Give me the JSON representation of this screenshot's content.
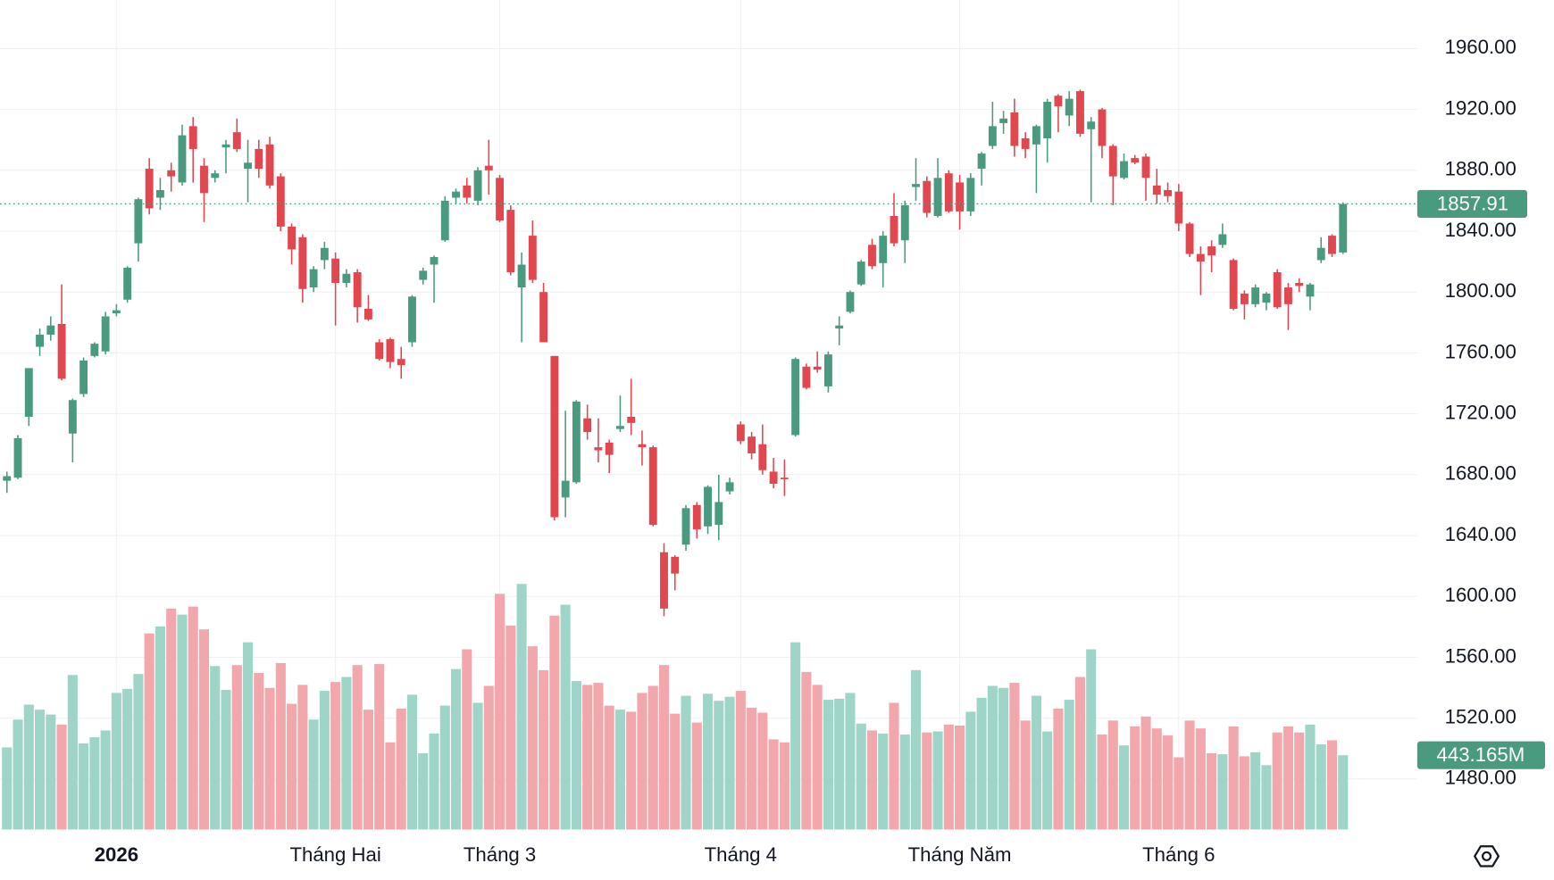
{
  "chart_data": {
    "type": "candlestick",
    "up_color": "#4a9a7f",
    "down_color": "#e0474f",
    "volume_up_color": "#9fd4c8",
    "volume_down_color": "#f2a7ad",
    "grid": true,
    "ylim": [
      1446.8,
      1991.9
    ],
    "yticks": [
      {
        "value": 1480,
        "label": "1480.00"
      },
      {
        "value": 1520,
        "label": "1520.00"
      },
      {
        "value": 1560,
        "label": "1560.00"
      },
      {
        "value": 1600,
        "label": "1600.00"
      },
      {
        "value": 1640,
        "label": "1640.00"
      },
      {
        "value": 1680,
        "label": "1680.00"
      },
      {
        "value": 1720,
        "label": "1720.00"
      },
      {
        "value": 1760,
        "label": "1760.00"
      },
      {
        "value": 1800,
        "label": "1800.00"
      },
      {
        "value": 1840,
        "label": "1840.00"
      },
      {
        "value": 1880,
        "label": "1880.00"
      },
      {
        "value": 1920,
        "label": "1920.00"
      },
      {
        "value": 1960,
        "label": "1960.00"
      }
    ],
    "xticks": [
      {
        "value": 10,
        "label": "2026"
      },
      {
        "value": 30,
        "label": "Tháng Hai"
      },
      {
        "value": 45,
        "label": "Tháng 3"
      },
      {
        "value": 67,
        "label": "Tháng 4"
      },
      {
        "value": 87,
        "label": "Tháng Năm"
      },
      {
        "value": 107,
        "label": "Tháng 6"
      }
    ],
    "volume_ylim": [
      0,
      1500
    ],
    "last_volume_label": "443.165M",
    "open": [
      1676,
      1678,
      1718,
      1764,
      1772,
      1779,
      1707,
      1733,
      1758,
      1761,
      1786,
      1795,
      1832,
      1881,
      1862,
      1880,
      1872,
      1909,
      1883,
      1875,
      1895,
      1905,
      1881,
      1894,
      1897,
      1876,
      1843,
      1836,
      1803,
      1821,
      1822,
      1806,
      1813,
      1789,
      1767,
      1769,
      1756,
      1767,
      1808,
      1818,
      1834,
      1862,
      1870,
      1860,
      1883,
      1875,
      1854,
      1803,
      1837,
      1800,
      1758,
      1665,
      1675,
      1717,
      1698,
      1701,
      1710,
      1718,
      1700,
      1698,
      1629,
      1626,
      1634,
      1660,
      1646,
      1647,
      1669,
      1713,
      1705,
      1700,
      1682,
      1678,
      1706,
      1751,
      1751,
      1738,
      1776,
      1787,
      1805,
      1831,
      1819,
      1850,
      1834,
      1869,
      1873,
      1850,
      1878,
      1872,
      1853,
      1881,
      1896,
      1911,
      1918,
      1901,
      1897,
      1901,
      1929,
      1916,
      1932,
      1907,
      1920,
      1896,
      1875,
      1888,
      1889,
      1870,
      1867,
      1866,
      1845,
      1825,
      1830,
      1831,
      1821,
      1799,
      1792,
      1793,
      1813,
      1803,
      1806,
      1797,
      1821,
      1837,
      1826
    ],
    "high": [
      1682,
      1706,
      1750,
      1776,
      1784,
      1805,
      1730,
      1757,
      1767,
      1787,
      1792,
      1817,
      1862,
      1888,
      1875,
      1885,
      1910,
      1915,
      1888,
      1880,
      1900,
      1914,
      1900,
      1900,
      1902,
      1878,
      1845,
      1838,
      1817,
      1833,
      1826,
      1815,
      1815,
      1798,
      1769,
      1770,
      1764,
      1798,
      1816,
      1824,
      1863,
      1868,
      1875,
      1882,
      1900,
      1877,
      1857,
      1826,
      1847,
      1806,
      1758,
      1722,
      1729,
      1726,
      1717,
      1703,
      1732,
      1743,
      1709,
      1699,
      1635,
      1627,
      1660,
      1662,
      1673,
      1680,
      1678,
      1715,
      1708,
      1713,
      1691,
      1690,
      1757,
      1753,
      1761,
      1761,
      1784,
      1801,
      1821,
      1835,
      1840,
      1865,
      1860,
      1888,
      1876,
      1888,
      1880,
      1877,
      1878,
      1892,
      1925,
      1919,
      1927,
      1905,
      1910,
      1927,
      1930,
      1932,
      1933,
      1915,
      1921,
      1897,
      1891,
      1890,
      1891,
      1881,
      1872,
      1871,
      1846,
      1830,
      1834,
      1845,
      1822,
      1801,
      1805,
      1800,
      1815,
      1806,
      1809,
      1806,
      1836,
      1838,
      1859
    ],
    "low": [
      1668,
      1677,
      1712,
      1758,
      1768,
      1742,
      1688,
      1731,
      1757,
      1759,
      1784,
      1793,
      1820,
      1851,
      1854,
      1866,
      1870,
      1872,
      1846,
      1872,
      1878,
      1892,
      1859,
      1875,
      1868,
      1840,
      1818,
      1793,
      1800,
      1815,
      1778,
      1803,
      1780,
      1781,
      1755,
      1750,
      1743,
      1764,
      1805,
      1793,
      1833,
      1858,
      1858,
      1857,
      1864,
      1846,
      1811,
      1767,
      1806,
      1767,
      1650,
      1652,
      1674,
      1703,
      1688,
      1681,
      1708,
      1706,
      1686,
      1646,
      1587,
      1604,
      1630,
      1638,
      1641,
      1637,
      1667,
      1700,
      1690,
      1680,
      1671,
      1666,
      1705,
      1736,
      1747,
      1734,
      1765,
      1786,
      1804,
      1815,
      1803,
      1830,
      1819,
      1860,
      1849,
      1849,
      1852,
      1841,
      1850,
      1870,
      1894,
      1904,
      1889,
      1888,
      1865,
      1885,
      1905,
      1909,
      1902,
      1859,
      1888,
      1857,
      1874,
      1884,
      1860,
      1858,
      1859,
      1840,
      1823,
      1798,
      1813,
      1829,
      1788,
      1782,
      1790,
      1788,
      1789,
      1775,
      1800,
      1788,
      1819,
      1823,
      1825
    ],
    "close": [
      1679,
      1704,
      1750,
      1772,
      1778,
      1743,
      1729,
      1755,
      1766,
      1784,
      1788,
      1816,
      1861,
      1855,
      1867,
      1876,
      1903,
      1894,
      1865,
      1878,
      1897,
      1894,
      1885,
      1881,
      1870,
      1843,
      1828,
      1802,
      1815,
      1829,
      1806,
      1812,
      1790,
      1782,
      1756,
      1754,
      1752,
      1797,
      1814,
      1823,
      1860,
      1866,
      1862,
      1880,
      1880,
      1847,
      1813,
      1818,
      1808,
      1767,
      1652,
      1676,
      1728,
      1708,
      1696,
      1693,
      1712,
      1714,
      1698,
      1647,
      1592,
      1615,
      1658,
      1644,
      1672,
      1662,
      1675,
      1702,
      1694,
      1683,
      1674,
      1677,
      1756,
      1737,
      1749,
      1759,
      1778,
      1800,
      1820,
      1817,
      1837,
      1832,
      1857,
      1871,
      1852,
      1875,
      1853,
      1853,
      1875,
      1891,
      1909,
      1914,
      1896,
      1894,
      1909,
      1925,
      1922,
      1927,
      1904,
      1912,
      1896,
      1876,
      1886,
      1885,
      1875,
      1864,
      1863,
      1845,
      1825,
      1820,
      1824,
      1838,
      1789,
      1792,
      1803,
      1799,
      1790,
      1792,
      1804,
      1805,
      1829,
      1825,
      1857.91
    ],
    "volume": [
      490,
      656,
      745,
      715,
      686,
      626,
      922,
      514,
      550,
      591,
      815,
      839,
      928,
      1170,
      1211,
      1318,
      1282,
      1330,
      1194,
      975,
      833,
      981,
      1117,
      934,
      845,
      993,
      750,
      863,
      656,
      827,
      880,
      910,
      981,
      715,
      987,
      520,
      721,
      804,
      455,
      573,
      739,
      957,
      1075,
      756,
      857,
      1406,
      1217,
      1465,
      1093,
      951,
      1276,
      1341,
      886,
      863,
      875,
      739,
      715,
      703,
      815,
      857,
      981,
      691,
      798,
      638,
      810,
      768,
      792,
      827,
      727,
      697,
      538,
      520,
      1117,
      940,
      863,
      774,
      780,
      815,
      632,
      591,
      573,
      756,
      567,
      951,
      579,
      585,
      626,
      620,
      703,
      786,
      857,
      845,
      875,
      650,
      798,
      585,
      721,
      774,
      910,
      1075,
      567,
      650,
      502,
      615,
      674,
      603,
      561,
      431,
      650,
      603,
      455,
      449,
      615,
      437,
      461,
      384,
      579,
      615,
      579,
      626,
      508,
      532,
      443.165
    ]
  }
}
